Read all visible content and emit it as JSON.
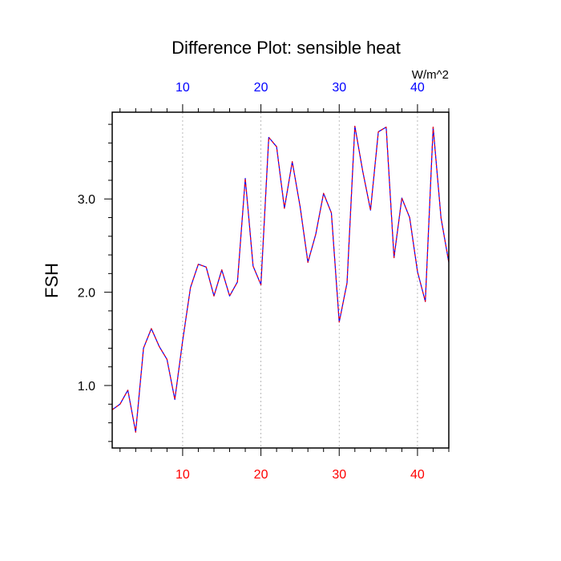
{
  "chart_data": {
    "type": "line",
    "title": "Difference Plot: sensible heat",
    "units_label": "W/m^2",
    "ylabel": "FSH",
    "xlim": [
      1,
      44
    ],
    "ylim": [
      0.33,
      3.93
    ],
    "x_ticks": [
      10,
      20,
      30,
      40
    ],
    "x_tick_labels": [
      "10",
      "20",
      "30",
      "40"
    ],
    "y_ticks": [
      1.0,
      2.0,
      3.0
    ],
    "y_tick_labels": [
      "1.0",
      "2.0",
      "3.0"
    ],
    "grid": "vertical dotted at x ticks",
    "colors": {
      "top_tick_labels": "#0000ff",
      "bottom_tick_labels": "#ff0000",
      "line_primary": "#0000ff",
      "line_overlay": "#ff0000",
      "grid": "#aaaaaa",
      "frame": "#000000"
    },
    "series": [
      {
        "x": [
          1,
          2,
          3,
          4,
          5,
          6,
          7,
          8,
          9,
          10,
          11,
          12,
          13,
          14,
          15,
          16,
          17,
          18,
          19,
          20,
          21,
          22,
          23,
          24,
          25,
          26,
          27,
          28,
          29,
          30,
          31,
          32,
          33,
          34,
          35,
          36,
          37,
          38,
          39,
          40,
          41,
          42,
          43,
          44
        ],
        "values": [
          0.74,
          0.8,
          0.95,
          0.5,
          1.4,
          1.61,
          1.42,
          1.28,
          0.85,
          1.48,
          2.05,
          2.3,
          2.27,
          1.96,
          2.24,
          1.96,
          2.11,
          3.22,
          2.28,
          2.08,
          3.66,
          3.56,
          2.9,
          3.4,
          2.92,
          2.32,
          2.62,
          3.06,
          2.85,
          1.68,
          2.1,
          3.78,
          3.3,
          2.88,
          3.72,
          3.77,
          2.37,
          3.01,
          2.8,
          2.22,
          1.9,
          3.77,
          2.8,
          2.32
        ]
      }
    ]
  }
}
